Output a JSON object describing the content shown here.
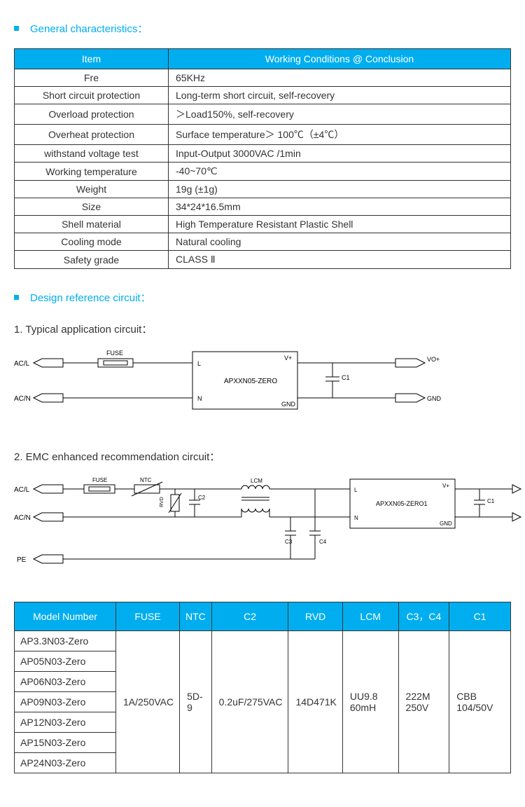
{
  "colors": {
    "accent": "#00aeef",
    "border": "#333333",
    "text": "#333333",
    "diagram_stroke": "#000000"
  },
  "section1": {
    "title": "General characteristics：",
    "table": {
      "headers": [
        "Item",
        "Working Conditions @ Conclusion"
      ],
      "rows": [
        {
          "item": "Fre",
          "val": "65KHz"
        },
        {
          "item": "Short circuit protection",
          "val": "Long-term short circuit, self-recovery"
        },
        {
          "item": "Overload protection",
          "val": "＞Load150%, self-recovery"
        },
        {
          "item": "Overheat protection",
          "val": "Surface temperature＞ 100℃（±4℃）"
        },
        {
          "item": "withstand voltage test",
          "val": "Input-Output   3000VAC /1min"
        },
        {
          "item": "Working temperature",
          "val": "-40~70℃"
        },
        {
          "item": "Weight",
          "val": "19g (±1g)"
        },
        {
          "item": "Size",
          "val": "34*24*16.5mm"
        },
        {
          "item": "Shell material",
          "val": "High Temperature Resistant Plastic Shell"
        },
        {
          "item": "Cooling mode",
          "val": "Natural cooling"
        },
        {
          "item": "Safety grade",
          "val": "CLASS Ⅱ"
        }
      ]
    }
  },
  "section2": {
    "title": "Design reference circuit：",
    "sub1": "1.  Typical application circuit：",
    "sub2": "2.  EMC enhanced recommendation circuit：",
    "diagram1": {
      "labels": {
        "acl": "AC/L",
        "acn": "AC/N",
        "fuse": "FUSE",
        "module": "APXXN05-ZERO",
        "L": "L",
        "N": "N",
        "Vp": "V+",
        "GND": "GND",
        "C1": "C1",
        "VOp": "VO+",
        "GNDout": "GND"
      }
    },
    "diagram2": {
      "labels": {
        "acl": "AC/L",
        "acn": "AC/N",
        "pe": "PE",
        "fuse": "FUSE",
        "ntc": "NTC",
        "rvd": "RVD",
        "c2": "C2",
        "lcm": "LCM",
        "c3": "C3",
        "c4": "C4",
        "module": "APXXN05-ZERO1",
        "L": "L",
        "N": "N",
        "Vp": "V+",
        "GND": "GND",
        "C1": "C1"
      }
    },
    "compTable": {
      "headers": [
        "Model Number",
        "FUSE",
        "NTC",
        "C2",
        "RVD",
        "LCM",
        "C3，C4",
        "C1"
      ],
      "models": [
        "AP3.3N03-Zero",
        "AP05N03-Zero",
        "AP06N03-Zero",
        "AP09N03-Zero",
        "AP12N03-Zero",
        "AP15N03-Zero",
        "AP24N03-Zero"
      ],
      "values": {
        "fuse": "1A/250VAC",
        "ntc": "5D-9",
        "c2": "0.2uF/275VAC",
        "rvd": "14D471K",
        "lcm": "UU9.8 60mH",
        "c3c4": "222M 250V",
        "c1": "CBB 104/50V"
      }
    }
  }
}
